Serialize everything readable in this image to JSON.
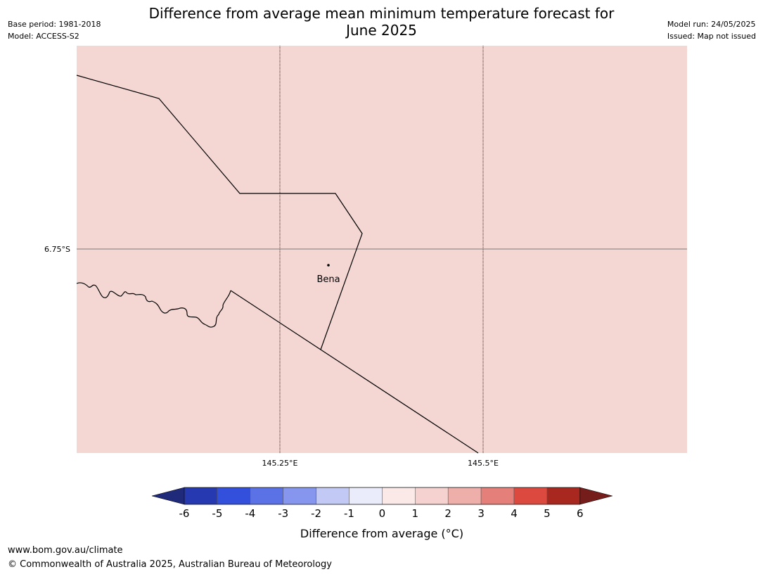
{
  "header": {
    "title_line1": "Difference from average mean minimum temperature forecast for",
    "title_line2": "June 2025",
    "base_period": "Base period: 1981-2018",
    "model": "Model: ACCESS-S2",
    "model_run": "Model run: 24/05/2025",
    "issued": "Issued: Map not issued"
  },
  "map": {
    "fill_color": "#f4d6d3",
    "lat_label": "6.75°S",
    "lon_labels": [
      "145.25°E",
      "145.5°E"
    ],
    "place_label": "Bena"
  },
  "legend": {
    "ticks": [
      "-6",
      "-5",
      "-4",
      "-3",
      "-2",
      "-1",
      "0",
      "1",
      "2",
      "3",
      "4",
      "5",
      "6"
    ],
    "colors": [
      "#1f2a7a",
      "#2639b0",
      "#3350dc",
      "#5b72e6",
      "#8696ee",
      "#c2c9f5",
      "#eaecfc",
      "#fbe9e7",
      "#f5d2cf",
      "#eeaeaa",
      "#e57f7a",
      "#dc4a3f",
      "#a82820",
      "#741d1b"
    ],
    "label": "Difference from average (°C)"
  },
  "footer": {
    "url": "www.bom.gov.au/climate",
    "copyright": "© Commonwealth of Australia 2025, Australian Bureau of Meteorology"
  }
}
